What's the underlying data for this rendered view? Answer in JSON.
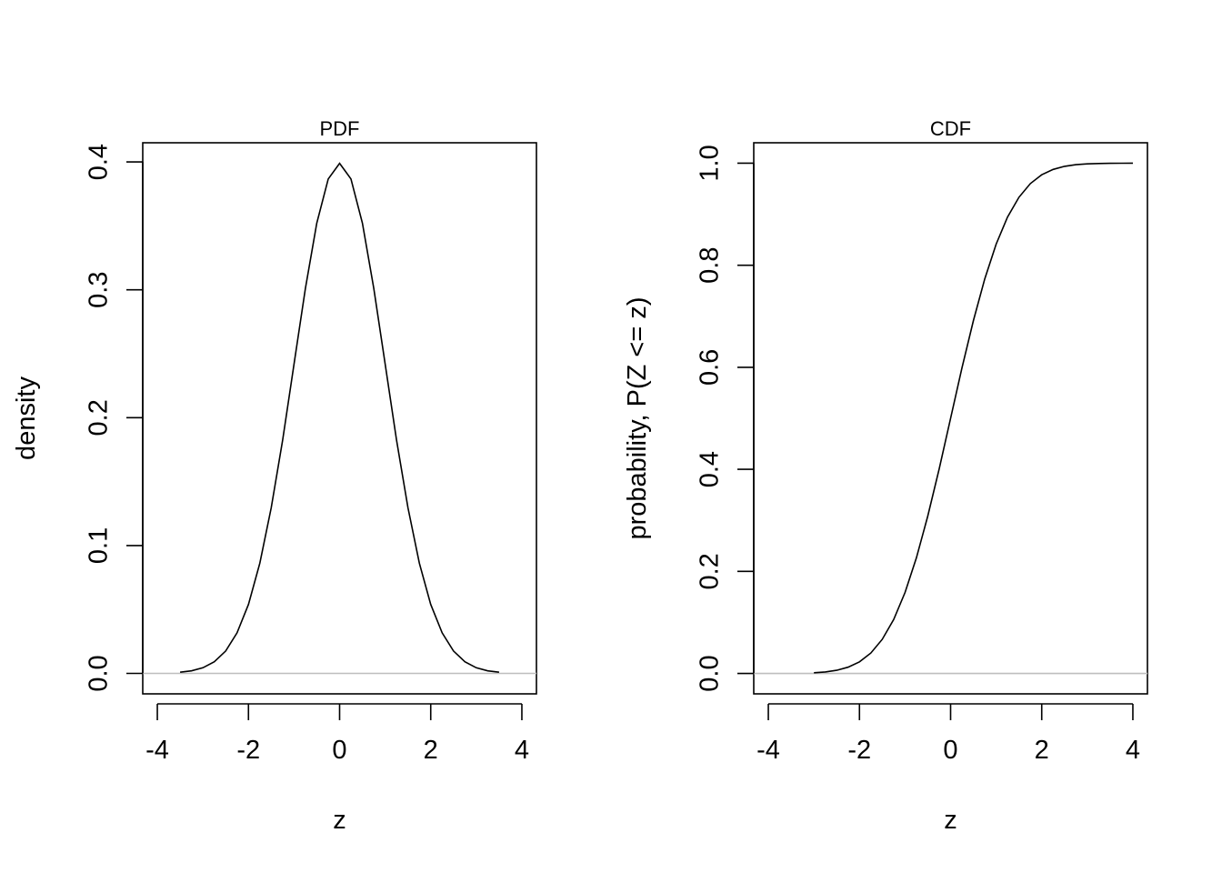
{
  "chart_data": [
    {
      "type": "line",
      "title": "PDF",
      "xlabel": "z",
      "ylabel": "density",
      "xlim": [
        -4.32,
        4.32
      ],
      "ylim": [
        -0.016,
        0.415
      ],
      "xticks": [
        -4,
        -2,
        0,
        2,
        4
      ],
      "yticks": [
        0.0,
        0.1,
        0.2,
        0.3,
        0.4
      ],
      "xtick_labels": [
        "-4",
        "-2",
        "0",
        "2",
        "4"
      ],
      "ytick_labels": [
        "0.0",
        "0.1",
        "0.2",
        "0.3",
        "0.4"
      ],
      "reference_line": {
        "y": 0,
        "color": "#bebebe"
      },
      "grid": false,
      "series": [
        {
          "x": [
            -3.5,
            -3.25,
            -3.0,
            -2.75,
            -2.5,
            -2.25,
            -2.0,
            -1.75,
            -1.5,
            -1.25,
            -1.0,
            -0.75,
            -0.5,
            -0.25,
            0.0,
            0.25,
            0.5,
            0.75,
            1.0,
            1.25,
            1.5,
            1.75,
            2.0,
            2.25,
            2.5,
            2.75,
            3.0,
            3.25,
            3.5
          ],
          "y": [
            0.0009,
            0.002,
            0.0044,
            0.0091,
            0.0175,
            0.0317,
            0.054,
            0.0863,
            0.1295,
            0.1826,
            0.242,
            0.3011,
            0.3521,
            0.3867,
            0.3989,
            0.3867,
            0.3521,
            0.3011,
            0.242,
            0.1826,
            0.1295,
            0.0863,
            0.054,
            0.0317,
            0.0175,
            0.0091,
            0.0044,
            0.002,
            0.0009
          ],
          "color": "#000000"
        }
      ]
    },
    {
      "type": "line",
      "title": "CDF",
      "xlabel": "z",
      "ylabel": "probability, P(Z <= z)",
      "xlim": [
        -4.32,
        4.32
      ],
      "ylim": [
        -0.04,
        1.04
      ],
      "xticks": [
        -4,
        -2,
        0,
        2,
        4
      ],
      "yticks": [
        0.0,
        0.2,
        0.4,
        0.6,
        0.8,
        1.0
      ],
      "xtick_labels": [
        "-4",
        "-2",
        "0",
        "2",
        "4"
      ],
      "ytick_labels": [
        "0.0",
        "0.2",
        "0.4",
        "0.6",
        "0.8",
        "1.0"
      ],
      "reference_line": {
        "y": 0,
        "color": "#bebebe"
      },
      "grid": false,
      "series": [
        {
          "x": [
            -3.0,
            -2.75,
            -2.5,
            -2.25,
            -2.0,
            -1.75,
            -1.5,
            -1.25,
            -1.0,
            -0.75,
            -0.5,
            -0.25,
            0.0,
            0.25,
            0.5,
            0.75,
            1.0,
            1.25,
            1.5,
            1.75,
            2.0,
            2.25,
            2.5,
            2.75,
            3.0,
            3.25,
            3.5,
            3.75,
            4.0
          ],
          "y": [
            0.0013,
            0.003,
            0.0062,
            0.0122,
            0.0228,
            0.0401,
            0.0668,
            0.1056,
            0.1587,
            0.2266,
            0.3085,
            0.4013,
            0.5,
            0.5987,
            0.6915,
            0.7734,
            0.8413,
            0.8944,
            0.9332,
            0.9599,
            0.9772,
            0.9878,
            0.9938,
            0.997,
            0.9987,
            0.9994,
            0.9998,
            0.9999,
            1.0
          ],
          "color": "#000000"
        }
      ]
    }
  ]
}
